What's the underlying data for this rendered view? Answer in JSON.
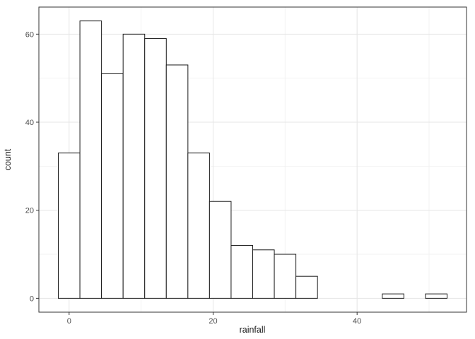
{
  "chart_data": {
    "type": "bar",
    "subtype": "histogram",
    "title": "",
    "xlabel": "rainfall",
    "ylabel": "count",
    "binwidth": 3,
    "bin_centers": [
      0,
      3,
      6,
      9,
      12,
      15,
      18,
      21,
      24,
      27,
      30,
      33,
      36,
      39,
      42,
      45,
      48,
      51
    ],
    "counts": [
      33,
      63,
      51,
      60,
      59,
      53,
      33,
      22,
      12,
      11,
      10,
      5,
      0,
      0,
      0,
      1,
      0,
      1
    ],
    "x_ticks": [
      0,
      20,
      40
    ],
    "y_ticks": [
      0,
      20,
      40,
      60
    ],
    "x_minor_gridlines": [
      10,
      30,
      50
    ],
    "y_minor_gridlines": [
      10,
      30,
      50
    ],
    "xlim": [
      -4.2,
      55.2
    ],
    "ylim": [
      -3.15,
      66.15
    ],
    "grid": true,
    "legend": "none",
    "style": {
      "panel_bg": "#ffffff",
      "outer_bg": "#ffffff",
      "bar_fill": "#ffffff",
      "bar_stroke": "#1a1a1a",
      "grid_major": "#e5e5e5",
      "grid_minor": "#f2f2f2",
      "panel_border": "#333333",
      "tick_color": "#333333",
      "axis_text_color": "#4d4d4d",
      "axis_title_color": "#1a1a1a"
    }
  }
}
